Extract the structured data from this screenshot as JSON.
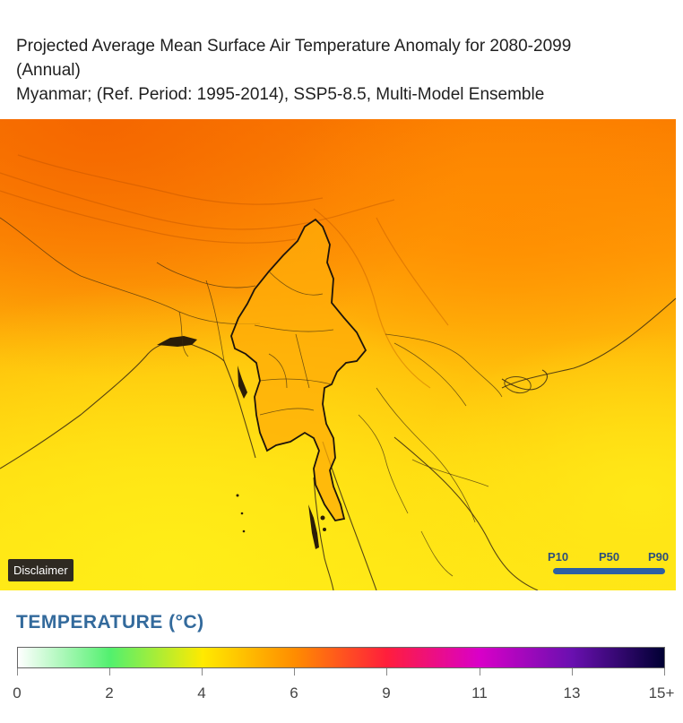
{
  "title": {
    "line1": "Projected Average Mean Surface Air Temperature Anomaly for 2080-2099",
    "line2": "(Annual)",
    "line3": "Myanmar; (Ref. Period: 1995-2014), SSP5-8.5, Multi-Model Ensemble"
  },
  "map": {
    "disclaimer_label": "Disclaimer",
    "percentiles": [
      "P10",
      "P50",
      "P90"
    ],
    "selected_percentile": "P50",
    "colors": {
      "ocean": "#ffe515",
      "lowland": "#ffc40a",
      "myanmar_land": "#ffac08",
      "himalaya": "#fb7a00",
      "china_plateau": "#ff9505",
      "borders": "#3a2a10"
    }
  },
  "legend": {
    "title": "TEMPERATURE (°C)",
    "tick_labels": [
      "0",
      "2",
      "4",
      "6",
      "9",
      "11",
      "13",
      "15+"
    ],
    "colors": [
      "#ffffff",
      "#52f06e",
      "#ffea00",
      "#ff8c00",
      "#ff1e3c",
      "#d900c8",
      "#6a10b0",
      "#000033"
    ],
    "slider_color": "#2c5fa3"
  }
}
